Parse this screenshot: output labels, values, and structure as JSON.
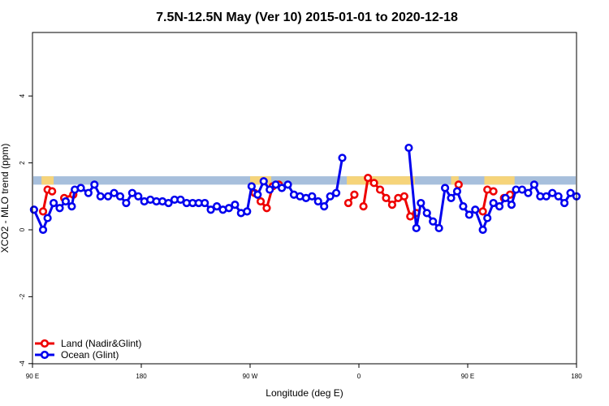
{
  "chart_data": {
    "type": "line",
    "title": "7.5N-12.5N May (Ver 10)   2015-01-01 to 2020-12-18",
    "xlabel": "Longitude (deg E)",
    "ylabel": "XCO2 - MLO trend (ppm)",
    "xlim": [
      90,
      450
    ],
    "ylim": [
      -4,
      6
    ],
    "x_ticks": [
      {
        "value": 90,
        "label": "90 E"
      },
      {
        "value": 162,
        "label": "180"
      },
      {
        "value": 234,
        "label": "90 W"
      },
      {
        "value": 306,
        "label": "0"
      },
      {
        "value": 378,
        "label": "90 E"
      },
      {
        "value": 450,
        "label": "180"
      }
    ],
    "y_ticks": [
      {
        "value": -4,
        "label": "-4"
      },
      {
        "value": -2,
        "label": "-2"
      },
      {
        "value": 0,
        "label": "0"
      },
      {
        "value": 2,
        "label": "2"
      },
      {
        "value": 4,
        "label": "4"
      }
    ],
    "band": {
      "y_low": 1.35,
      "y_high": 1.6,
      "color": "#a7bfdc",
      "land_color": "#f6d47a"
    },
    "land_segments": [
      [
        96,
        104
      ],
      [
        234,
        248
      ],
      [
        298,
        343
      ],
      [
        367,
        372
      ],
      [
        389,
        409
      ]
    ],
    "legend": {
      "position": "bottom-left"
    },
    "series": [
      {
        "name": "Land (Nadir&Glint)",
        "color": "#ee0000",
        "segments": [
          [
            [
              97,
              0.55
            ],
            [
              100,
              1.2
            ],
            [
              103,
              1.15
            ]
          ],
          [
            [
              111,
              0.95
            ],
            [
              117,
              1.05
            ]
          ],
          [
            [
              237,
              1.1
            ],
            [
              241,
              0.85
            ],
            [
              245,
              0.65
            ],
            [
              249,
              1.3
            ],
            [
              253,
              1.35
            ]
          ],
          [
            [
              299,
              0.8
            ],
            [
              303,
              1.05
            ]
          ],
          [
            [
              309,
              0.7
            ],
            [
              312,
              1.55
            ],
            [
              316,
              1.4
            ],
            [
              320,
              1.2
            ],
            [
              324,
              0.95
            ],
            [
              328,
              0.75
            ],
            [
              332,
              0.95
            ],
            [
              336,
              1.0
            ],
            [
              340,
              0.4
            ],
            [
              344,
              0.5
            ]
          ],
          [
            [
              372,
              1.35
            ]
          ],
          [
            [
              388,
              0.55
            ],
            [
              391,
              1.2
            ],
            [
              395,
              1.15
            ]
          ],
          [
            [
              402,
              0.95
            ],
            [
              406,
              1.05
            ]
          ]
        ]
      },
      {
        "name": "Ocean (Glint)",
        "color": "#0000ee",
        "segments": [
          [
            [
              91,
              0.6
            ],
            [
              97,
              0.0
            ],
            [
              100,
              0.35
            ],
            [
              104,
              0.8
            ],
            [
              108,
              0.65
            ],
            [
              112,
              0.85
            ],
            [
              116,
              0.7
            ],
            [
              118,
              1.2
            ],
            [
              122,
              1.25
            ],
            [
              127,
              1.1
            ],
            [
              131,
              1.35
            ],
            [
              135,
              1.0
            ],
            [
              140,
              1.0
            ],
            [
              144,
              1.1
            ],
            [
              148,
              1.0
            ],
            [
              152,
              0.8
            ],
            [
              156,
              1.1
            ],
            [
              160,
              1.0
            ],
            [
              164,
              0.85
            ],
            [
              168,
              0.9
            ],
            [
              172,
              0.85
            ],
            [
              176,
              0.85
            ],
            [
              180,
              0.8
            ],
            [
              184,
              0.9
            ],
            [
              188,
              0.9
            ],
            [
              192,
              0.8
            ],
            [
              196,
              0.8
            ],
            [
              200,
              0.8
            ],
            [
              204,
              0.8
            ],
            [
              208,
              0.6
            ],
            [
              212,
              0.7
            ],
            [
              216,
              0.6
            ],
            [
              220,
              0.65
            ],
            [
              224,
              0.75
            ],
            [
              228,
              0.5
            ],
            [
              232,
              0.55
            ],
            [
              235,
              1.3
            ],
            [
              239,
              1.05
            ],
            [
              243,
              1.45
            ],
            [
              247,
              1.2
            ],
            [
              251,
              1.35
            ],
            [
              255,
              1.25
            ],
            [
              259,
              1.35
            ],
            [
              263,
              1.05
            ],
            [
              267,
              1.0
            ],
            [
              271,
              0.95
            ],
            [
              275,
              1.0
            ],
            [
              279,
              0.85
            ],
            [
              283,
              0.7
            ],
            [
              287,
              1.0
            ],
            [
              291,
              1.1
            ],
            [
              295,
              2.15
            ]
          ],
          [
            [
              339,
              2.45
            ],
            [
              344,
              0.05
            ],
            [
              347,
              0.8
            ],
            [
              351,
              0.5
            ],
            [
              355,
              0.25
            ],
            [
              359,
              0.05
            ],
            [
              363,
              1.25
            ],
            [
              367,
              0.95
            ],
            [
              371,
              1.15
            ],
            [
              375,
              0.7
            ],
            [
              379,
              0.45
            ],
            [
              383,
              0.6
            ],
            [
              388,
              0.0
            ],
            [
              391,
              0.35
            ],
            [
              395,
              0.8
            ],
            [
              399,
              0.7
            ],
            [
              403,
              0.95
            ],
            [
              407,
              0.75
            ],
            [
              410,
              1.2
            ],
            [
              414,
              1.2
            ],
            [
              418,
              1.1
            ],
            [
              422,
              1.35
            ],
            [
              426,
              1.0
            ],
            [
              430,
              1.0
            ],
            [
              434,
              1.1
            ],
            [
              438,
              1.0
            ],
            [
              442,
              0.8
            ],
            [
              446,
              1.1
            ],
            [
              450,
              1.0
            ]
          ]
        ]
      }
    ]
  }
}
